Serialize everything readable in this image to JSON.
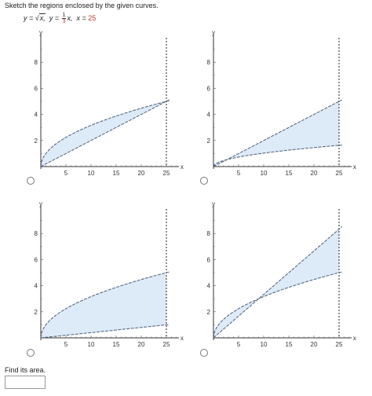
{
  "question": {
    "prompt": "Sketch the regions enclosed by the given curves.",
    "equations": {
      "y1_lhs": "y =",
      "y1_rhs": "x,",
      "y2_lhs": "y =",
      "y2_num": "1",
      "y2_den": "3",
      "y2_var": "x,",
      "x_lhs": "x =",
      "x_val": "25"
    }
  },
  "area_prompt": "Find its area.",
  "answer_field": {
    "value": ""
  },
  "colors": {
    "fill": "#ddeaf8",
    "curve": "#4a5e78",
    "accent": "#c0392b"
  },
  "plots": [
    {
      "id": "A",
      "y_label": "y",
      "x_label": "x",
      "x_ticks": [
        "5",
        "10",
        "15",
        "20",
        "25"
      ],
      "y_ticks": [
        "2",
        "4",
        "6",
        "8"
      ],
      "curves": [
        "sqrt",
        "third"
      ]
    },
    {
      "id": "B",
      "y_label": "y",
      "x_label": "x",
      "x_ticks": [
        "5",
        "10",
        "15",
        "20",
        "25"
      ],
      "y_ticks": [
        "2",
        "4",
        "6",
        "8"
      ],
      "curves": [
        "sqrt_scaled",
        "third"
      ]
    },
    {
      "id": "C",
      "y_label": "y",
      "x_label": "x",
      "x_ticks": [
        "5",
        "10",
        "15",
        "20",
        "25"
      ],
      "y_ticks": [
        "2",
        "4",
        "6",
        "8"
      ],
      "curves": [
        "sqrt",
        "fifth_small"
      ]
    },
    {
      "id": "D",
      "y_label": "y",
      "x_label": "x",
      "x_ticks": [
        "5",
        "10",
        "15",
        "20",
        "25"
      ],
      "y_ticks": [
        "2",
        "4",
        "6",
        "8"
      ],
      "curves": [
        "sqrt",
        "third_steep"
      ]
    }
  ]
}
